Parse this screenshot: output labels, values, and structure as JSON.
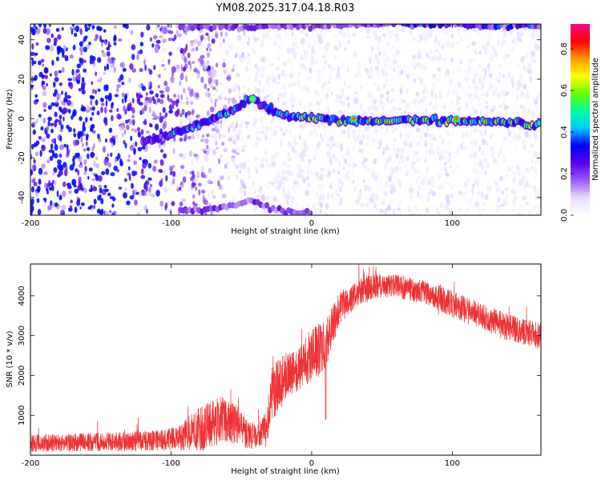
{
  "figure_title": "YM08.2025.317.04.18.R03",
  "chart_data": [
    {
      "type": "heatmap",
      "title": "",
      "xlabel": "Height of straight line (km)",
      "ylabel": "Frequency (Hz)",
      "xlim": [
        -200,
        163
      ],
      "ylim": [
        -49,
        48
      ],
      "xticks": [
        -200,
        -100,
        0,
        100
      ],
      "yticks": [
        -40,
        -20,
        0,
        20,
        40
      ],
      "colorbar": {
        "label": "Normalized spectral amplitude",
        "range": [
          0,
          0.92
        ],
        "ticks": [
          "0.0",
          "0.2",
          "0.4",
          "0.6",
          "0.8"
        ],
        "colormap": [
          "#ffffff",
          "#e8dcff",
          "#9b5cf7",
          "#5a00e6",
          "#0000ff",
          "#00c8ff",
          "#00ff9a",
          "#66ff00",
          "#ffff00",
          "#ff9900",
          "#ff0000",
          "#ff0088"
        ]
      },
      "features": [
        {
          "name": "main_ridge",
          "points": [
            [
              -118,
              -12
            ],
            [
              -100,
              -8
            ],
            [
              -80,
              -3
            ],
            [
              -60,
              3
            ],
            [
              -42,
              10
            ],
            [
              -25,
              3
            ],
            [
              -10,
              1
            ],
            [
              0,
              0
            ],
            [
              20,
              -1
            ],
            [
              40,
              -1
            ],
            [
              60,
              -1
            ],
            [
              80,
              -1
            ],
            [
              100,
              -1
            ],
            [
              120,
              -1
            ],
            [
              140,
              -2
            ],
            [
              163,
              -3
            ]
          ]
        },
        {
          "name": "upper_edge_band",
          "points": [
            [
              -95,
              46
            ],
            [
              -70,
              47
            ],
            [
              -50,
              46
            ],
            [
              -30,
              47
            ],
            [
              0,
              47
            ],
            [
              40,
              48
            ],
            [
              80,
              48
            ],
            [
              120,
              47
            ],
            [
              163,
              47
            ]
          ]
        },
        {
          "name": "lower_edge_band",
          "points": [
            [
              -95,
              -47
            ],
            [
              -70,
              -46
            ],
            [
              -55,
              -44
            ],
            [
              -45,
              -42
            ],
            [
              -35,
              -44
            ],
            [
              -20,
              -47
            ],
            [
              0,
              -48
            ]
          ]
        }
      ],
      "peak_points": [
        [
          30,
          0
        ],
        [
          103,
          0
        ],
        [
          -42,
          10
        ]
      ]
    },
    {
      "type": "line",
      "title": "",
      "xlabel": "Height of straight line (km)",
      "ylabel": "SNR (10 * v/v)",
      "xlim": [
        -200,
        163
      ],
      "ylim": [
        0,
        4800
      ],
      "xticks": [
        -200,
        -100,
        0,
        100
      ],
      "yticks": [
        1000,
        2000,
        3000,
        4000
      ],
      "color": "#ee3333",
      "series": [
        {
          "name": "SNR",
          "envelope": {
            "x": [
              -200,
              -170,
              -140,
              -110,
              -95,
              -85,
              -75,
              -65,
              -55,
              -45,
              -38,
              -33,
              -28,
              -20,
              -10,
              0,
              10,
              20,
              30,
              40,
              50,
              60,
              80,
              100,
              120,
              140,
              163
            ],
            "mean": [
              300,
              320,
              340,
              370,
              420,
              600,
              700,
              900,
              800,
              500,
              500,
              650,
              1500,
              2000,
              2200,
              2500,
              2800,
              3700,
              4000,
              4200,
              4250,
              4250,
              4100,
              3800,
              3500,
              3200,
              3000
            ],
            "spread": [
              260,
              260,
              280,
              300,
              350,
              550,
              700,
              700,
              600,
              450,
              300,
              500,
              900,
              700,
              700,
              800,
              700,
              500,
              400,
              400,
              350,
              350,
              350,
              400,
              400,
              400,
              400
            ]
          }
        }
      ]
    }
  ]
}
